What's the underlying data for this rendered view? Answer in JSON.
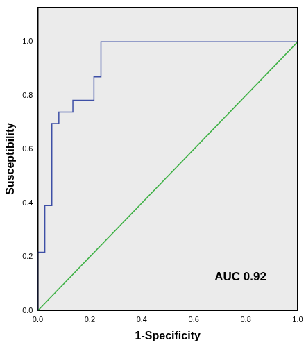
{
  "chart_data": {
    "type": "line",
    "x_label": "1-Specificity",
    "y_label": "Susceptibility",
    "annotations": [
      "AUC 0.92"
    ],
    "series": [
      {
        "color": "#3d4fa6",
        "line_style": "step",
        "x": [
          0,
          0,
          0.027,
          0.027,
          0.054,
          0.054,
          0.081,
          0.081,
          0.135,
          0.135,
          0.216,
          0.216,
          0.243,
          0.243,
          1.0
        ],
        "values": [
          0,
          0.217,
          0.217,
          0.391,
          0.391,
          0.696,
          0.696,
          0.739,
          0.739,
          0.783,
          0.783,
          0.87,
          0.87,
          1.0,
          1.0
        ]
      },
      {
        "color": "#3cb043",
        "line_style": "solid",
        "x": [
          0,
          1.0
        ],
        "values": [
          0,
          1.0
        ]
      }
    ],
    "xlim": [
      0,
      1.0
    ],
    "ylim": [
      0,
      1.13
    ],
    "xticks": [
      {
        "value": 0,
        "label": "0.0"
      },
      {
        "value": 0.2,
        "label": "0.2"
      },
      {
        "value": 0.4,
        "label": "0.4"
      },
      {
        "value": 0.6,
        "label": "0.6"
      },
      {
        "value": 0.8,
        "label": "0.8"
      },
      {
        "value": 1.0,
        "label": "1.0"
      }
    ],
    "yticks": [
      {
        "value": 0,
        "label": "0.0"
      },
      {
        "value": 0.2,
        "label": "0.2"
      },
      {
        "value": 0.4,
        "label": "0.4"
      },
      {
        "value": 0.6,
        "label": "0.6"
      },
      {
        "value": 0.8,
        "label": "0.8"
      },
      {
        "value": 1.0,
        "label": "1.0"
      }
    ],
    "grid": false,
    "tick_labels": true
  }
}
